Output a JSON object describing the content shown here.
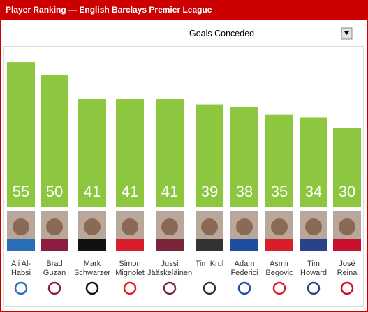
{
  "chart_data": {
    "type": "bar",
    "title": "Player Ranking — English Barclays Premier League",
    "metric": "Goals Conceded",
    "categories": [
      [
        "Ali Al-",
        "Habsi"
      ],
      [
        "Brad",
        "Guzan"
      ],
      [
        "Mark",
        "Schwarzer"
      ],
      [
        "Simon",
        "Mignolet"
      ],
      [
        "Jussi",
        "Jääskeläinen"
      ],
      [
        "Tim Krul"
      ],
      [
        "Adam",
        "Federici"
      ],
      [
        "Asmir",
        "Begovic"
      ],
      [
        "Tim",
        "Howard"
      ],
      [
        "José",
        "Reina"
      ]
    ],
    "values": [
      55,
      50,
      41,
      41,
      41,
      39,
      38,
      35,
      34,
      30
    ],
    "color": "#8dc63f"
  }
}
